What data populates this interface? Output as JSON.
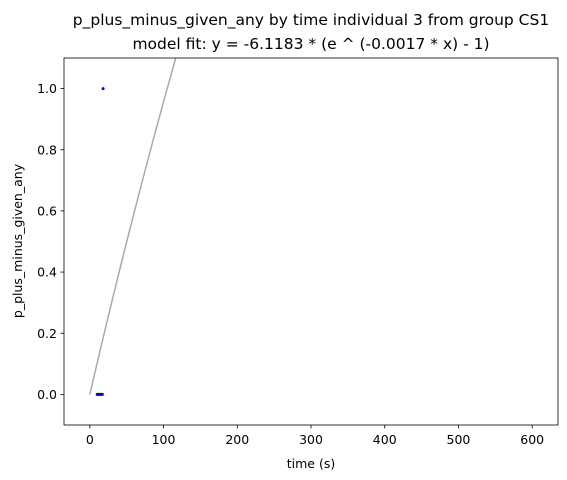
{
  "chart_data": {
    "type": "scatter",
    "title": "p_plus_minus_given_any by time individual 3 from group CS1",
    "subtitle": "model fit: y = -6.1183 * (e ^ (-0.0017 * x) - 1)",
    "xlabel": "time (s)",
    "ylabel": "p_plus_minus_given_any",
    "xlim": [
      -35,
      635
    ],
    "ylim": [
      -0.1,
      1.1
    ],
    "x_ticks": [
      0,
      100,
      200,
      300,
      400,
      500,
      600
    ],
    "y_ticks": [
      0.0,
      0.2,
      0.4,
      0.6,
      0.8,
      1.0
    ],
    "x_tick_labels": [
      "0",
      "100",
      "200",
      "300",
      "400",
      "500",
      "600"
    ],
    "y_tick_labels": [
      "0.0",
      "0.2",
      "0.4",
      "0.6",
      "0.8",
      "1.0"
    ],
    "grid": false,
    "series": [
      {
        "kind": "points",
        "color": "#0000ff",
        "points": [
          {
            "x": 10,
            "y": 0.0
          },
          {
            "x": 11,
            "y": 0.0
          },
          {
            "x": 12,
            "y": 0.0
          },
          {
            "x": 13,
            "y": 0.0
          },
          {
            "x": 14,
            "y": 0.0
          },
          {
            "x": 15,
            "y": 0.0
          },
          {
            "x": 16,
            "y": 0.0
          },
          {
            "x": 17,
            "y": 0.0
          },
          {
            "x": 18,
            "y": 1.0
          }
        ]
      },
      {
        "kind": "fit",
        "color": "#aaaaaa",
        "model": {
          "a": -6.1183,
          "b": -0.0017
        },
        "x_range": [
          0,
          620
        ]
      }
    ]
  }
}
